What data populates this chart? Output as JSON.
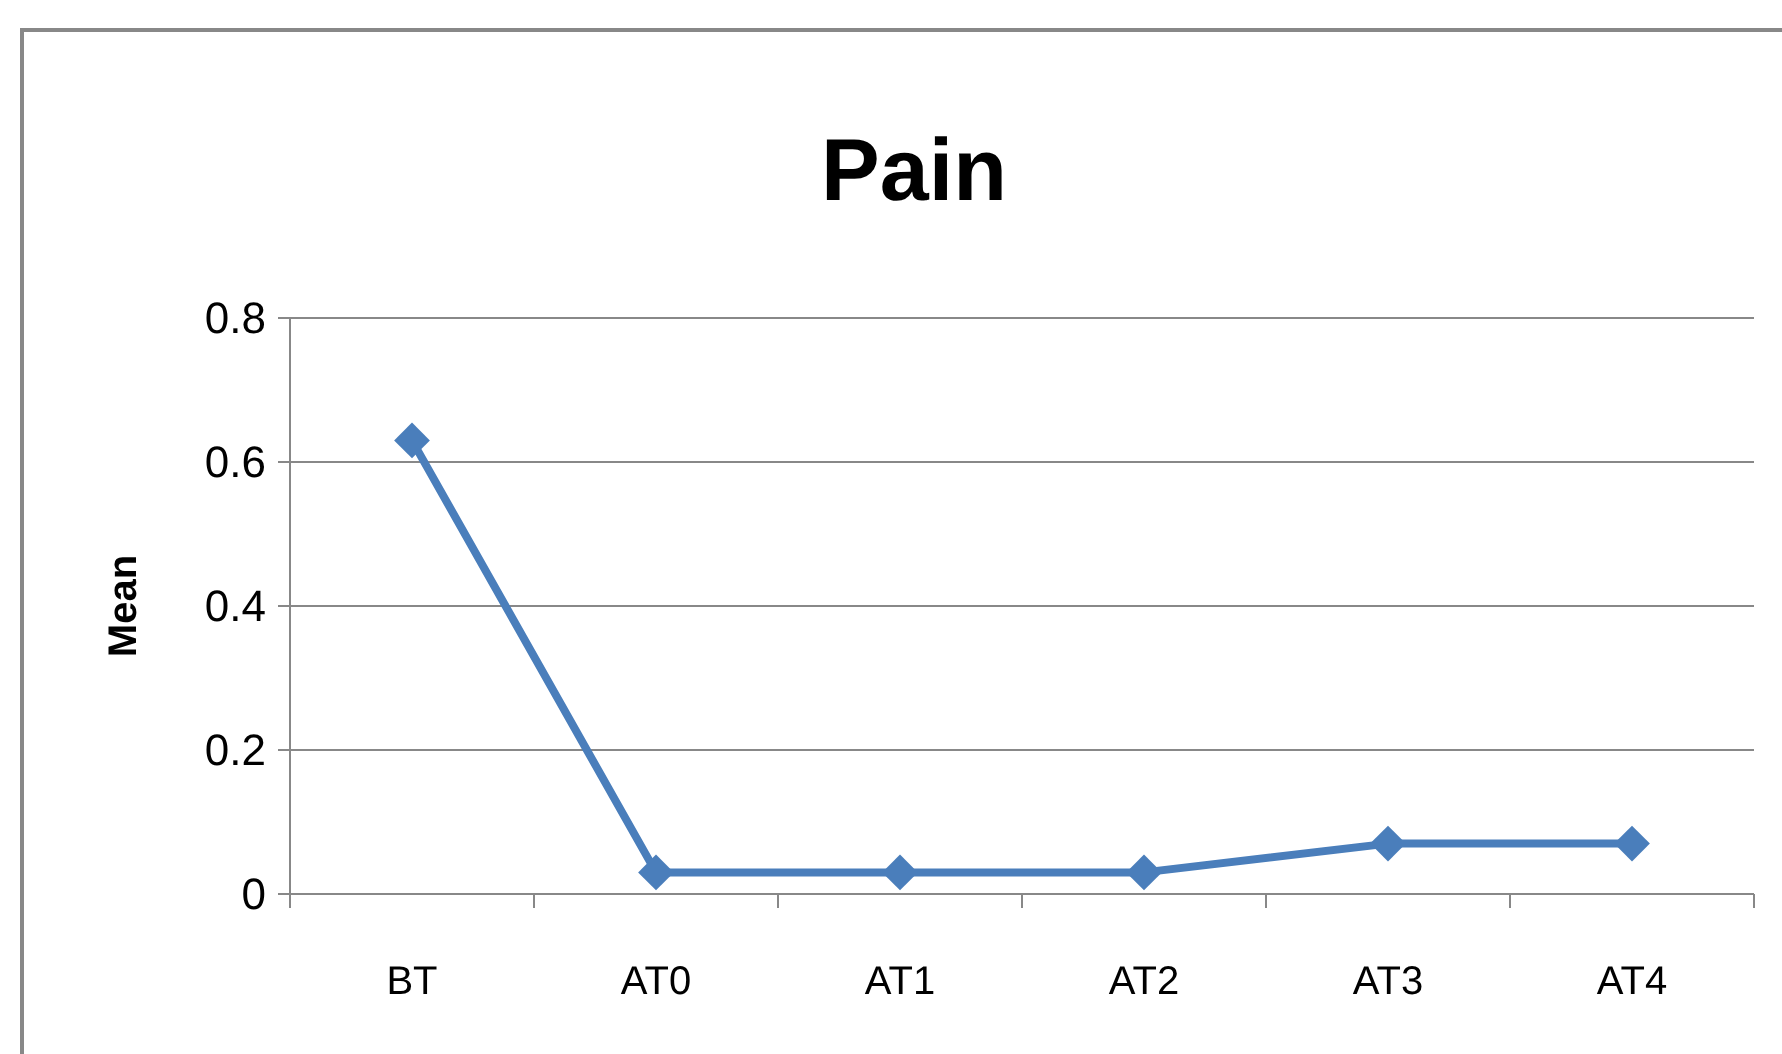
{
  "chart_data": {
    "type": "line",
    "title": "Pain",
    "ylabel": "Mean",
    "categories": [
      "BT",
      "AT0",
      "AT1",
      "AT2",
      "AT3",
      "AT4"
    ],
    "series": [
      {
        "color": "#4a7ebb",
        "values": [
          0.63,
          0.03,
          0.03,
          0.03,
          0.07,
          0.07
        ]
      }
    ],
    "ylim": [
      0,
      0.8
    ],
    "yticks": [
      {
        "value": 0,
        "label": "0"
      },
      0.2,
      0.4,
      0.6,
      0.8
    ],
    "grid": "y",
    "marker": "diamond",
    "line_style": "solid"
  }
}
